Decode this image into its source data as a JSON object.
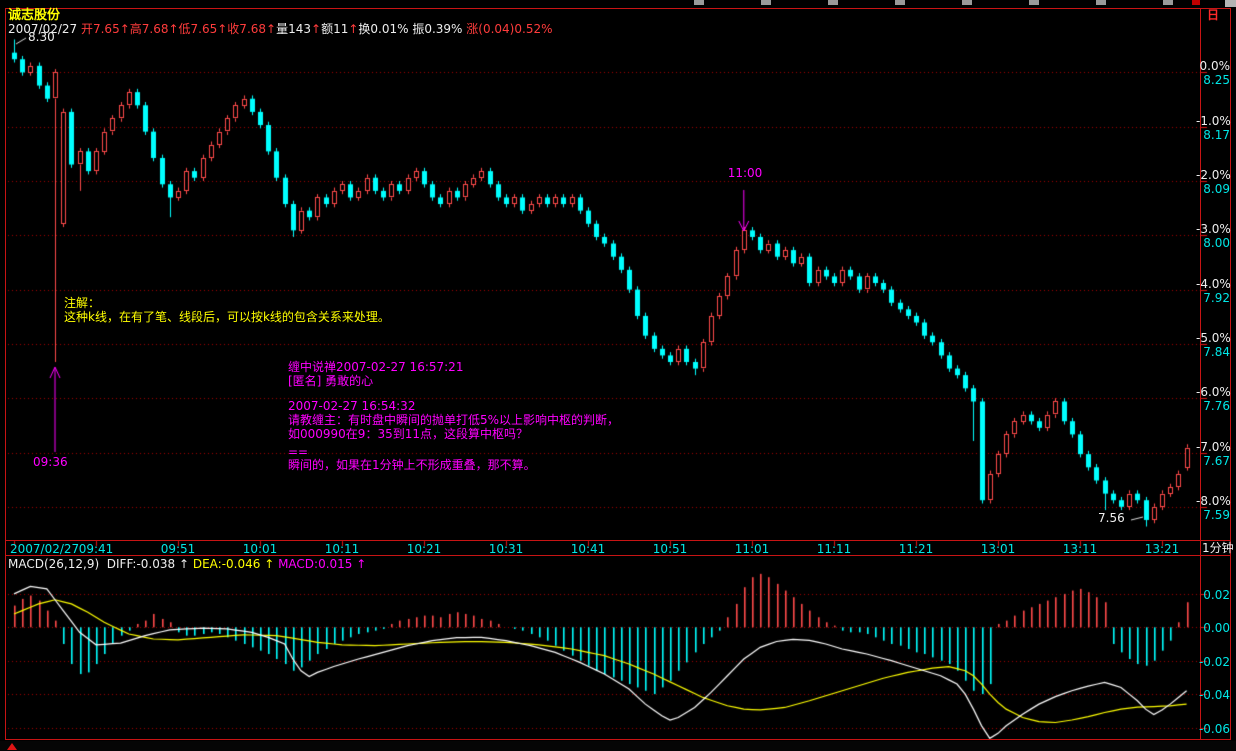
{
  "window": {
    "app_title": "诚志股份",
    "top_right_icon": "日",
    "period_label": "1分钟"
  },
  "header": {
    "parts": [
      {
        "text": "2007/02/27 ",
        "color": "#eeeeee"
      },
      {
        "text": "开7.65↑高7.68↑低7.65↑收7.68↑",
        "color": "#ff3c3c"
      },
      {
        "text": "量143",
        "color": "#eeeeee"
      },
      {
        "text": "↑",
        "color": "#ff3c3c"
      },
      {
        "text": "额11",
        "color": "#eeeeee"
      },
      {
        "text": "↑",
        "color": "#ff3c3c"
      },
      {
        "text": "换0.01% 振0.39% ",
        "color": "#eeeeee"
      },
      {
        "text": "涨(0.04)0.52%",
        "color": "#ff3c3c"
      }
    ]
  },
  "macd_header": {
    "parts": [
      {
        "text": "MACD(26,12,9)  ",
        "color": "#eeeeee"
      },
      {
        "text": "DIFF:-0.038 ↑ ",
        "color": "#eeeeee"
      },
      {
        "text": "DEA:-0.046 ↑ ",
        "color": "#ffff00"
      },
      {
        "text": "MACD:0.015 ↑",
        "color": "#ff00ff"
      }
    ]
  },
  "annotations": {
    "note_title": "注解：",
    "note_body": "这种k线，在有了笔、线段后，可以按k线的包含关系来处理。",
    "chat": {
      "l1": "缠中说禅2007-02-27 16:57:21",
      "l2": "[匿名] 勇敢的心",
      "l3": "2007-02-27 16:54:32",
      "l4": "请教缠主：有时盘中瞬间的抛单打低5%以上影响中枢的判断，",
      "l5": "如000990在9：35到11点，这段算中枢吗？",
      "l6": "==",
      "l7": "瞬间的，如果在1分钟上不形成重叠，那不算。"
    },
    "high_callout": "8.30",
    "low_callout": "7.56",
    "arrow_down_label": "11:00",
    "arrow_up_label": "09:36"
  },
  "time_axis": {
    "labels": [
      {
        "text": "2007/02/27",
        "i": 0
      },
      {
        "text": "09:41",
        "i": 10
      },
      {
        "text": "09:51",
        "i": 20
      },
      {
        "text": "10:01",
        "i": 30
      },
      {
        "text": "10:11",
        "i": 40
      },
      {
        "text": "10:21",
        "i": 50
      },
      {
        "text": "10:31",
        "i": 60
      },
      {
        "text": "10:41",
        "i": 70
      },
      {
        "text": "10:51",
        "i": 80
      },
      {
        "text": "11:01",
        "i": 90
      },
      {
        "text": "11:11",
        "i": 100
      },
      {
        "text": "11:21",
        "i": 110
      },
      {
        "text": "13:01",
        "i": 120
      },
      {
        "text": "13:11",
        "i": 130
      },
      {
        "text": "13:21",
        "i": 140
      }
    ]
  },
  "chart_data": {
    "type": "candlestick_with_macd",
    "interval": "1分钟",
    "prev_close": 8.25,
    "y_axis_pct": [
      "0.0%",
      "-1.0%",
      "-2.0%",
      "-3.0%",
      "-4.0%",
      "-5.0%",
      "-6.0%",
      "-7.0%",
      "-8.0%"
    ],
    "y_axis_price": [
      "8.25",
      "8.17",
      "8.09",
      "8.00",
      "7.92",
      "7.84",
      "7.76",
      "7.67",
      "7.59"
    ],
    "macd_axis": [
      "0.02",
      "0.00",
      "-0.02",
      "-0.04",
      "-0.06"
    ],
    "open_first": 8.28,
    "closes": [
      8.27,
      8.25,
      8.26,
      8.23,
      8.21,
      8.25,
      8.19,
      8.11,
      8.13,
      8.1,
      8.13,
      8.16,
      8.18,
      8.2,
      8.22,
      8.2,
      8.16,
      8.12,
      8.08,
      8.06,
      8.07,
      8.1,
      8.09,
      8.12,
      8.14,
      8.16,
      8.18,
      8.2,
      8.21,
      8.19,
      8.17,
      8.13,
      8.09,
      8.05,
      8.01,
      8.04,
      8.03,
      8.06,
      8.05,
      8.07,
      8.08,
      8.06,
      8.07,
      8.09,
      8.07,
      8.06,
      8.08,
      8.07,
      8.09,
      8.1,
      8.08,
      8.06,
      8.05,
      8.07,
      8.06,
      8.08,
      8.09,
      8.1,
      8.08,
      8.06,
      8.05,
      8.06,
      8.04,
      8.05,
      8.06,
      8.05,
      8.06,
      8.05,
      8.06,
      8.04,
      8.02,
      8.0,
      7.99,
      7.97,
      7.95,
      7.92,
      7.88,
      7.85,
      7.83,
      7.82,
      7.81,
      7.83,
      7.81,
      7.8,
      7.84,
      7.88,
      7.91,
      7.94,
      7.98,
      8.01,
      8.0,
      7.98,
      7.99,
      7.97,
      7.98,
      7.96,
      7.97,
      7.93,
      7.95,
      7.94,
      7.93,
      7.95,
      7.94,
      7.92,
      7.94,
      7.93,
      7.92,
      7.9,
      7.89,
      7.88,
      7.87,
      7.85,
      7.84,
      7.82,
      7.8,
      7.79,
      7.77,
      7.75,
      7.6,
      7.64,
      7.67,
      7.7,
      7.72,
      7.73,
      7.72,
      7.71,
      7.73,
      7.75,
      7.72,
      7.7,
      7.67,
      7.65,
      7.63,
      7.61,
      7.6,
      7.59,
      7.61,
      7.6,
      7.57,
      7.59,
      7.61,
      7.62,
      7.64,
      7.68
    ],
    "opens_override": {
      "6": 8.02,
      "143": 7.65
    },
    "wick_override": {
      "0": {
        "h": 8.3
      },
      "5": {
        "l": 7.81
      },
      "8": {
        "l": 8.07
      },
      "19": {
        "l": 8.03
      },
      "34": {
        "l": 8.0
      },
      "83": {
        "l": 7.79
      },
      "117": {
        "l": 7.69
      },
      "118": {
        "l": 7.595
      },
      "133": {
        "l": 7.585
      },
      "138": {
        "l": 7.56
      },
      "143": {
        "h": 7.68
      }
    },
    "macd": {
      "hist": [
        0.013,
        0.017,
        0.019,
        0.016,
        0.01,
        0.004,
        -0.01,
        -0.022,
        -0.028,
        -0.027,
        -0.022,
        -0.016,
        -0.01,
        -0.005,
        -0.002,
        0.002,
        0.004,
        0.008,
        0.005,
        0.003,
        -0.003,
        -0.005,
        -0.005,
        -0.004,
        -0.003,
        -0.004,
        -0.006,
        -0.008,
        -0.01,
        -0.012,
        -0.014,
        -0.016,
        -0.019,
        -0.022,
        -0.026,
        -0.024,
        -0.02,
        -0.016,
        -0.013,
        -0.01,
        -0.008,
        -0.006,
        -0.004,
        -0.003,
        -0.002,
        -0.001,
        0.002,
        0.004,
        0.005,
        0.006,
        0.007,
        0.007,
        0.006,
        0.008,
        0.009,
        0.008,
        0.007,
        0.005,
        0.004,
        0.002,
        0.0,
        -0.001,
        -0.002,
        -0.004,
        -0.006,
        -0.008,
        -0.011,
        -0.014,
        -0.017,
        -0.02,
        -0.023,
        -0.026,
        -0.028,
        -0.03,
        -0.032,
        -0.034,
        -0.036,
        -0.038,
        -0.04,
        -0.036,
        -0.032,
        -0.026,
        -0.021,
        -0.015,
        -0.01,
        -0.006,
        -0.002,
        0.006,
        0.014,
        0.024,
        0.03,
        0.032,
        0.03,
        0.026,
        0.022,
        0.018,
        0.014,
        0.01,
        0.006,
        0.003,
        0.001,
        -0.002,
        -0.003,
        -0.003,
        -0.004,
        -0.006,
        -0.008,
        -0.01,
        -0.011,
        -0.013,
        -0.015,
        -0.016,
        -0.018,
        -0.02,
        -0.022,
        -0.026,
        -0.032,
        -0.038,
        -0.04,
        -0.034,
        0.002,
        0.004,
        0.007,
        0.01,
        0.012,
        0.014,
        0.016,
        0.018,
        0.02,
        0.022,
        0.023,
        0.021,
        0.018,
        0.015,
        -0.01,
        -0.015,
        -0.019,
        -0.022,
        -0.023,
        -0.02,
        -0.014,
        -0.008,
        0.003,
        0.015
      ],
      "diff_points": [
        [
          0,
          0.02
        ],
        [
          2,
          0.0245
        ],
        [
          4,
          0.023
        ],
        [
          6,
          0.01
        ],
        [
          8,
          -0.003
        ],
        [
          10,
          -0.0105
        ],
        [
          13,
          -0.0095
        ],
        [
          16,
          -0.005
        ],
        [
          19,
          -0.0015
        ],
        [
          23,
          -0.0005
        ],
        [
          26,
          -0.001
        ],
        [
          29,
          -0.003
        ],
        [
          31,
          -0.006
        ],
        [
          33,
          -0.01
        ],
        [
          34,
          -0.019
        ],
        [
          35,
          -0.026
        ],
        [
          36,
          -0.0295
        ],
        [
          37,
          -0.027
        ],
        [
          39,
          -0.0235
        ],
        [
          42,
          -0.019
        ],
        [
          45,
          -0.015
        ],
        [
          48,
          -0.011
        ],
        [
          51,
          -0.008
        ],
        [
          54,
          -0.0062
        ],
        [
          57,
          -0.006
        ],
        [
          60,
          -0.008
        ],
        [
          63,
          -0.011
        ],
        [
          66,
          -0.015
        ],
        [
          69,
          -0.021
        ],
        [
          72,
          -0.028
        ],
        [
          75,
          -0.037
        ],
        [
          77,
          -0.046
        ],
        [
          79,
          -0.053
        ],
        [
          80,
          -0.0555
        ],
        [
          81,
          -0.054
        ],
        [
          83,
          -0.048
        ],
        [
          85,
          -0.039
        ],
        [
          87,
          -0.029
        ],
        [
          89,
          -0.019
        ],
        [
          91,
          -0.012
        ],
        [
          93,
          -0.0085
        ],
        [
          95,
          -0.0072
        ],
        [
          97,
          -0.0078
        ],
        [
          99,
          -0.01
        ],
        [
          101,
          -0.013
        ],
        [
          104,
          -0.016
        ],
        [
          107,
          -0.02
        ],
        [
          110,
          -0.0245
        ],
        [
          113,
          -0.029
        ],
        [
          115,
          -0.034
        ],
        [
          116,
          -0.04
        ],
        [
          117,
          -0.049
        ],
        [
          118,
          -0.059
        ],
        [
          119,
          -0.0665
        ],
        [
          120,
          -0.0635
        ],
        [
          121,
          -0.059
        ],
        [
          123,
          -0.052
        ],
        [
          125,
          -0.046
        ],
        [
          127,
          -0.0415
        ],
        [
          129,
          -0.038
        ],
        [
          131,
          -0.0352
        ],
        [
          133,
          -0.033
        ],
        [
          135,
          -0.036
        ],
        [
          137,
          -0.044
        ],
        [
          138,
          -0.049
        ],
        [
          139,
          -0.0522
        ],
        [
          140,
          -0.0495
        ],
        [
          141,
          -0.046
        ],
        [
          142,
          -0.042
        ],
        [
          143,
          -0.038
        ]
      ],
      "dea_points": [
        [
          0,
          0.008
        ],
        [
          3,
          0.014
        ],
        [
          5,
          0.0165
        ],
        [
          7,
          0.014
        ],
        [
          9,
          0.009
        ],
        [
          11,
          0.003
        ],
        [
          14,
          -0.004
        ],
        [
          17,
          -0.007
        ],
        [
          20,
          -0.0075
        ],
        [
          24,
          -0.006
        ],
        [
          28,
          -0.0045
        ],
        [
          32,
          -0.005
        ],
        [
          34,
          -0.0065
        ],
        [
          37,
          -0.009
        ],
        [
          40,
          -0.0105
        ],
        [
          44,
          -0.011
        ],
        [
          48,
          -0.01
        ],
        [
          52,
          -0.009
        ],
        [
          56,
          -0.0085
        ],
        [
          60,
          -0.009
        ],
        [
          64,
          -0.0105
        ],
        [
          68,
          -0.013
        ],
        [
          72,
          -0.017
        ],
        [
          75,
          -0.022
        ],
        [
          78,
          -0.028
        ],
        [
          81,
          -0.035
        ],
        [
          84,
          -0.042
        ],
        [
          87,
          -0.047
        ],
        [
          89,
          -0.049
        ],
        [
          91,
          -0.0495
        ],
        [
          94,
          -0.048
        ],
        [
          97,
          -0.044
        ],
        [
          100,
          -0.0395
        ],
        [
          103,
          -0.035
        ],
        [
          106,
          -0.0305
        ],
        [
          109,
          -0.027
        ],
        [
          112,
          -0.0245
        ],
        [
          114,
          -0.0235
        ],
        [
          116,
          -0.026
        ],
        [
          117,
          -0.029
        ],
        [
          118,
          -0.034
        ],
        [
          119,
          -0.04
        ],
        [
          120,
          -0.045
        ],
        [
          121,
          -0.049
        ],
        [
          123,
          -0.054
        ],
        [
          125,
          -0.0565
        ],
        [
          127,
          -0.057
        ],
        [
          129,
          -0.0555
        ],
        [
          131,
          -0.0535
        ],
        [
          133,
          -0.051
        ],
        [
          135,
          -0.049
        ],
        [
          137,
          -0.0478
        ],
        [
          139,
          -0.0475
        ],
        [
          141,
          -0.047
        ],
        [
          143,
          -0.046
        ]
      ]
    }
  },
  "colors": {
    "up": "#ff4a4a",
    "down": "#00ffff",
    "grid": "#aa0000",
    "frame": "#c81414",
    "diff_line": "#ffffff",
    "dea_line": "#ffff00",
    "annotation": "#ff00ff",
    "axis_pct": "#eeeeee",
    "axis_price": "#00e6e6"
  }
}
